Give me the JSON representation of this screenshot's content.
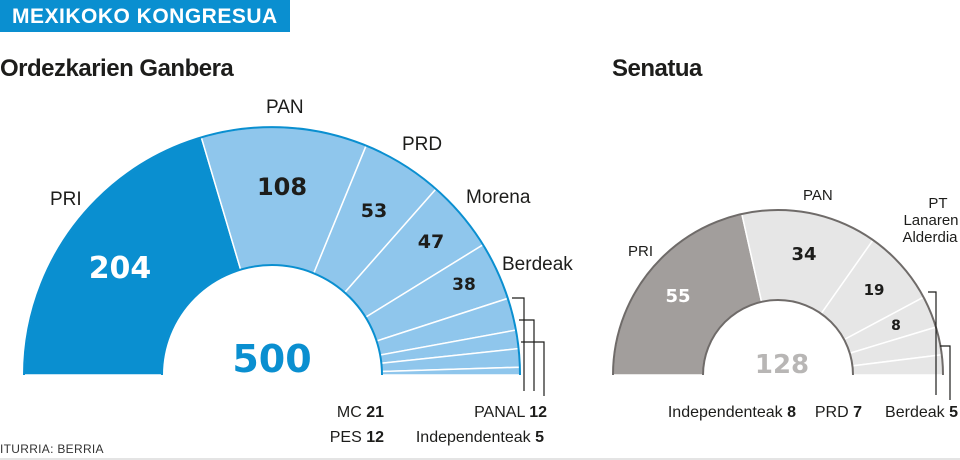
{
  "header": {
    "tag": "MEXIKOKO KONGRESUA"
  },
  "source": "ITURRIA: BERRIA",
  "colors": {
    "tag_bg": "#0a8fd0",
    "house_main": "#0a8fd0",
    "house_other": "#8fc6ec",
    "senate_main": "#a29e9c",
    "senate_other": "#e6e6e6"
  },
  "chart_data": [
    {
      "type": "pie",
      "title": "Ordezkarien Ganbera",
      "total": 500,
      "slices": [
        {
          "name": "PRI",
          "value": 204
        },
        {
          "name": "PAN",
          "value": 108
        },
        {
          "name": "PRD",
          "value": 53
        },
        {
          "name": "Morena",
          "value": 47
        },
        {
          "name": "Berdeak",
          "value": 38
        },
        {
          "name": "MC",
          "value": 21
        },
        {
          "name": "PES",
          "value": 12
        },
        {
          "name": "PANAL",
          "value": 12
        },
        {
          "name": "Independenteak",
          "value": 5
        }
      ]
    },
    {
      "type": "pie",
      "title": "Senatua",
      "total": 128,
      "slices": [
        {
          "name": "PRI",
          "value": 55
        },
        {
          "name": "PAN",
          "value": 34
        },
        {
          "name": "PT Lanaren Alderdia",
          "value": 19
        },
        {
          "name": "Independenteak",
          "value": 8
        },
        {
          "name": "PRD",
          "value": 7
        },
        {
          "name": "Berdeak",
          "value": 5
        }
      ]
    }
  ]
}
